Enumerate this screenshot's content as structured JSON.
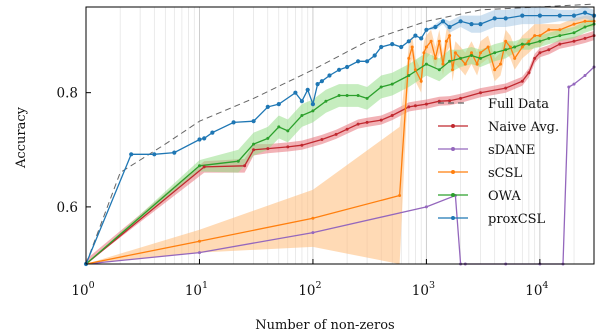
{
  "chart_data": {
    "type": "line",
    "xlabel": "Number of non-zeros",
    "ylabel": "Accuracy",
    "xscale": "log",
    "xlim": [
      1,
      30000
    ],
    "ylim": [
      0.5,
      0.95
    ],
    "grid": "vertical minor and major gridlines",
    "legend_position": "lower-right",
    "x_ticks": [
      {
        "value": 1,
        "base": "10",
        "exp": "0"
      },
      {
        "value": 10,
        "base": "10",
        "exp": "1"
      },
      {
        "value": 100,
        "base": "10",
        "exp": "2"
      },
      {
        "value": 1000,
        "base": "10",
        "exp": "3"
      },
      {
        "value": 10000,
        "base": "10",
        "exp": "4"
      }
    ],
    "y_ticks": [
      {
        "value": 0.6,
        "label": "0.6"
      },
      {
        "value": 0.8,
        "label": "0.8"
      }
    ],
    "series": [
      {
        "name": "Full Data",
        "color": "#666666",
        "style": "dashed",
        "x": [
          1,
          2,
          5,
          10,
          30,
          100,
          300,
          1000,
          3000,
          30000
        ],
        "y": [
          0.5,
          0.66,
          0.71,
          0.75,
          0.79,
          0.84,
          0.89,
          0.925,
          0.945,
          0.955
        ]
      },
      {
        "name": "Naive Avg.",
        "color": "#c0282f",
        "band_color": "#e8737a",
        "x": [
          1,
          11,
          25,
          30,
          40,
          60,
          80,
          120,
          160,
          200,
          250,
          300,
          400,
          500,
          700,
          800,
          1000,
          1300,
          1600,
          2000,
          3000,
          5000,
          7000,
          8000,
          9000,
          10000,
          12000,
          15000,
          20000,
          25000,
          30000
        ],
        "y": [
          0.5,
          0.67,
          0.672,
          0.7,
          0.702,
          0.705,
          0.708,
          0.718,
          0.727,
          0.736,
          0.745,
          0.748,
          0.752,
          0.76,
          0.775,
          0.777,
          0.78,
          0.785,
          0.786,
          0.79,
          0.8,
          0.808,
          0.82,
          0.835,
          0.86,
          0.87,
          0.875,
          0.885,
          0.89,
          0.895,
          0.9
        ],
        "band": [
          0.008,
          0.01,
          0.012,
          0.01,
          0.008,
          0.008,
          0.008,
          0.008,
          0.008,
          0.008,
          0.008,
          0.008,
          0.008,
          0.008,
          0.008,
          0.008,
          0.008,
          0.008,
          0.008,
          0.008,
          0.008,
          0.008,
          0.008,
          0.008,
          0.008,
          0.008,
          0.008,
          0.008,
          0.008,
          0.008,
          0.008
        ]
      },
      {
        "name": "sDANE",
        "color": "#9467bd",
        "band_color": "#c5b0d5",
        "x": [
          1,
          10,
          100,
          1000,
          1800,
          2000,
          2200,
          5000,
          10000,
          16000,
          18000,
          20000,
          25000,
          30000
        ],
        "y": [
          0.5,
          0.52,
          0.555,
          0.6,
          0.62,
          0.5,
          0.5,
          0.5,
          0.5,
          0.5,
          0.81,
          0.815,
          0.83,
          0.845
        ],
        "band": [
          0.0,
          0.0,
          0.0,
          0.0,
          0.0,
          0.0,
          0.0,
          0.0,
          0.0,
          0.0,
          0.0,
          0.0,
          0.0,
          0.0
        ]
      },
      {
        "name": "sCSL",
        "color": "#ff7f0e",
        "band_color": "#ffbb78",
        "x": [
          1,
          10,
          100,
          580,
          700,
          750,
          800,
          900,
          950,
          1000,
          1100,
          1200,
          1300,
          1400,
          1500,
          1600,
          1700,
          1800,
          2000,
          2200,
          2500,
          2800,
          3000,
          3500,
          4000,
          4500,
          5000,
          5500,
          6000,
          7000,
          8000,
          9000,
          10000,
          12000,
          15000,
          20000,
          25000,
          30000
        ],
        "y": [
          0.5,
          0.54,
          0.58,
          0.62,
          0.86,
          0.88,
          0.84,
          0.82,
          0.87,
          0.88,
          0.89,
          0.86,
          0.89,
          0.85,
          0.89,
          0.9,
          0.84,
          0.87,
          0.86,
          0.85,
          0.87,
          0.85,
          0.87,
          0.88,
          0.84,
          0.85,
          0.89,
          0.88,
          0.86,
          0.88,
          0.89,
          0.9,
          0.9,
          0.91,
          0.91,
          0.92,
          0.925,
          0.925
        ],
        "band": [
          0.0,
          0.02,
          0.05,
          0.12,
          0.02,
          0.02,
          0.02,
          0.02,
          0.02,
          0.02,
          0.02,
          0.02,
          0.02,
          0.02,
          0.02,
          0.02,
          0.02,
          0.02,
          0.02,
          0.02,
          0.02,
          0.02,
          0.02,
          0.02,
          0.02,
          0.02,
          0.02,
          0.02,
          0.02,
          0.02,
          0.02,
          0.02,
          0.02,
          0.01,
          0.01,
          0.01,
          0.01,
          0.01
        ]
      },
      {
        "name": "OWA",
        "color": "#2ca02c",
        "band_color": "#98df8a",
        "x": [
          1,
          10,
          22,
          30,
          40,
          50,
          60,
          80,
          100,
          130,
          170,
          200,
          250,
          300,
          400,
          500,
          700,
          1000,
          1300,
          1600,
          2000,
          2500,
          3000,
          4000,
          5000,
          6000,
          7000,
          8000,
          10000,
          12000,
          15000,
          20000,
          25000,
          30000
        ],
        "y": [
          0.5,
          0.672,
          0.68,
          0.71,
          0.72,
          0.74,
          0.733,
          0.76,
          0.768,
          0.785,
          0.795,
          0.795,
          0.795,
          0.79,
          0.81,
          0.815,
          0.83,
          0.85,
          0.84,
          0.855,
          0.86,
          0.865,
          0.86,
          0.87,
          0.875,
          0.88,
          0.885,
          0.885,
          0.89,
          0.895,
          0.9,
          0.905,
          0.915,
          0.92
        ],
        "band": [
          0.0,
          0.01,
          0.02,
          0.02,
          0.02,
          0.02,
          0.02,
          0.02,
          0.02,
          0.02,
          0.02,
          0.02,
          0.02,
          0.02,
          0.02,
          0.02,
          0.02,
          0.02,
          0.02,
          0.02,
          0.015,
          0.015,
          0.015,
          0.015,
          0.015,
          0.01,
          0.01,
          0.01,
          0.01,
          0.01,
          0.01,
          0.01,
          0.01,
          0.01
        ]
      },
      {
        "name": "proxCSL",
        "color": "#1f77b4",
        "band_color": "#a6c8e6",
        "x": [
          1,
          2.5,
          4,
          6,
          10,
          11,
          13,
          20,
          30,
          40,
          50,
          70,
          80,
          90,
          100,
          110,
          120,
          140,
          170,
          200,
          250,
          300,
          350,
          400,
          500,
          600,
          700,
          800,
          900,
          1000,
          1200,
          1400,
          1600,
          2000,
          2500,
          3000,
          4000,
          5000,
          7000,
          10000,
          15000,
          20000,
          25000,
          30000
        ],
        "y": [
          0.5,
          0.692,
          0.692,
          0.695,
          0.718,
          0.72,
          0.73,
          0.748,
          0.75,
          0.775,
          0.78,
          0.8,
          0.785,
          0.805,
          0.78,
          0.815,
          0.82,
          0.83,
          0.84,
          0.845,
          0.855,
          0.855,
          0.865,
          0.88,
          0.885,
          0.88,
          0.89,
          0.9,
          0.895,
          0.91,
          0.915,
          0.925,
          0.915,
          0.925,
          0.92,
          0.92,
          0.93,
          0.93,
          0.935,
          0.935,
          0.935,
          0.935,
          0.94,
          0.935
        ],
        "band": [
          0.0,
          0.0,
          0.0,
          0.0,
          0.0,
          0.0,
          0.0,
          0.0,
          0.0,
          0.0,
          0.0,
          0.0,
          0.0,
          0.0,
          0.0,
          0.0,
          0.0,
          0.0,
          0.0,
          0.0,
          0.0,
          0.0,
          0.0,
          0.0,
          0.0,
          0.0,
          0.0,
          0.0,
          0.0,
          0.0,
          0.005,
          0.005,
          0.01,
          0.01,
          0.015,
          0.015,
          0.015,
          0.015,
          0.015,
          0.015,
          0.01,
          0.01,
          0.01,
          0.01
        ]
      }
    ]
  }
}
